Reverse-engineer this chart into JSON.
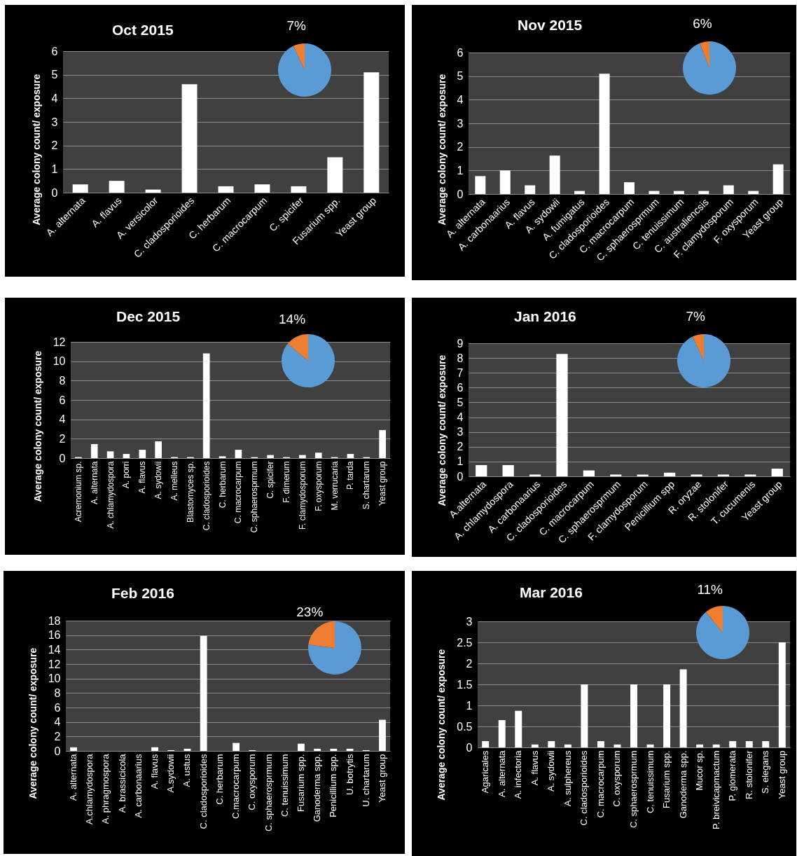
{
  "chart_data": [
    {
      "type": "bar",
      "title": "Oct 2015",
      "ylabel": "Average colony count/ exposure",
      "categories": [
        "A. alternata",
        "A. flavus",
        "A. versicolor",
        "C. cladosporioides",
        "C. herbarum",
        "C. macrocarpum",
        "C. spicifer",
        "Fusarium spp.",
        "Yeast group"
      ],
      "values": [
        0.35,
        0.5,
        0.13,
        4.6,
        0.27,
        0.35,
        0.27,
        1.5,
        5.1
      ],
      "color": "#ffffff",
      "ylim": [
        0,
        6
      ],
      "yticks": [
        0,
        1,
        2,
        3,
        4,
        5,
        6
      ],
      "grid": "y"
    },
    {
      "type": "pie",
      "categories": [
        null,
        null
      ],
      "values": [
        93,
        7
      ],
      "colors": [
        "#5b9bd5",
        "#ed7d31"
      ],
      "value_labels": [
        null,
        "7%"
      ]
    },
    {
      "type": "bar",
      "title": "Nov 2015",
      "ylabel": "Average colony count/ exposure",
      "categories": [
        "A. alternata",
        "A. carbonaarius",
        "A. flavus",
        "A. sydowii",
        "A. fumigatus",
        "C. cladosporioides",
        "C. macrocarpum",
        "C. sphaerosprmum",
        "C. tenuissimum",
        "C. australiencsis",
        "F. clamydosporum",
        "F. oxysporum",
        "Yeast group"
      ],
      "values": [
        0.76,
        1.0,
        0.37,
        1.63,
        0.13,
        5.1,
        0.5,
        0.13,
        0.13,
        0.13,
        0.37,
        0.13,
        1.26
      ],
      "color": "#ffffff",
      "ylim": [
        0,
        6
      ],
      "yticks": [
        0,
        1,
        2,
        3,
        4,
        5,
        6
      ],
      "grid": "y"
    },
    {
      "type": "pie",
      "categories": [
        null,
        null
      ],
      "values": [
        94,
        6
      ],
      "colors": [
        "#5b9bd5",
        "#ed7d31"
      ],
      "value_labels": [
        null,
        "6%"
      ]
    },
    {
      "type": "bar",
      "title": "Dec 2015",
      "ylabel": "Average colony count/ exposure",
      "categories": [
        "Acremonium sp.",
        "A. alternata",
        "A. chlamydospora",
        "A. porri",
        "A. flavus",
        "A. sydowii",
        "A. melleus",
        "Blastomyces sp.",
        "C. cladosporioides",
        "C. herbarum",
        "C. macrocarpum",
        "C. sphaerosprmum",
        "C. spicifer",
        "F. dimerum",
        "F. clamydosporum",
        "F. oxysporum",
        "M. verrucaria",
        "P. tarda",
        "S. chartarum",
        "Yeast group"
      ],
      "values": [
        0.1,
        1.45,
        0.7,
        0.43,
        0.86,
        1.74,
        0.1,
        0.1,
        10.8,
        0.19,
        0.86,
        0.1,
        0.32,
        0.1,
        0.32,
        0.56,
        0.1,
        0.43,
        0.1,
        2.9
      ],
      "color": "#ffffff",
      "ylim": [
        0,
        12
      ],
      "yticks": [
        0,
        2,
        4,
        6,
        8,
        10,
        12
      ],
      "grid": "y"
    },
    {
      "type": "pie",
      "categories": [
        null,
        null
      ],
      "values": [
        86,
        14
      ],
      "colors": [
        "#5b9bd5",
        "#ed7d31"
      ],
      "value_labels": [
        null,
        "14%"
      ]
    },
    {
      "type": "bar",
      "title": "Jan 2016",
      "ylabel": "Average colony count/ exposure",
      "categories": [
        "A.alternata",
        "A. chlamydospora",
        "A. carbonaarius",
        "C. cladosporioides",
        "C. macrocarpum",
        "C. sphaerosprmum",
        "F. clamydosporum",
        "Penicillium spp",
        "R. oryzae",
        "R. stolonifer",
        "T. cucumenis",
        "Yeast group"
      ],
      "values": [
        0.76,
        0.76,
        0.12,
        8.28,
        0.4,
        0.12,
        0.12,
        0.25,
        0.12,
        0.12,
        0.12,
        0.52
      ],
      "color": "#ffffff",
      "ylim": [
        0,
        9
      ],
      "yticks": [
        0,
        1,
        2,
        3,
        4,
        5,
        6,
        7,
        8,
        9
      ],
      "grid": "y"
    },
    {
      "type": "pie",
      "categories": [
        null,
        null
      ],
      "values": [
        93,
        7
      ],
      "colors": [
        "#5b9bd5",
        "#ed7d31"
      ],
      "value_labels": [
        null,
        "7%"
      ]
    },
    {
      "type": "bar",
      "title": "Feb 2016",
      "ylabel": "Average colony count/ exposure",
      "categories": [
        "A. alternata",
        "A.chlamydospora",
        "A. phragmospora",
        "A. brassicicola",
        "A. carbonaarius",
        "A. flavus",
        "A.sydowii",
        "A. ustus",
        "C. cladosporioides",
        "C. herbarum",
        "C.macrocarpum",
        "C. oxysporum",
        "C. sphaerosprmum",
        "C. tenuissimum",
        "Fusarium spp.",
        "Ganoderma spp.",
        "Penicillium spp.",
        "U. botrytis",
        "U. chartarum",
        "Yeast group"
      ],
      "values": [
        0.5,
        0,
        0,
        0,
        0,
        0.5,
        0.1,
        0.3,
        15.9,
        0,
        1.1,
        0.1,
        0,
        0,
        1.0,
        0.3,
        0.3,
        0.3,
        0.1,
        4.3
      ],
      "color": "#ffffff",
      "ylim": [
        0,
        18
      ],
      "yticks": [
        0,
        2,
        4,
        6,
        8,
        10,
        12,
        14,
        16,
        18
      ],
      "grid": "y"
    },
    {
      "type": "pie",
      "categories": [
        null,
        null
      ],
      "values": [
        77,
        23
      ],
      "colors": [
        "#5b9bd5",
        "#ed7d31"
      ],
      "value_labels": [
        null,
        "23%"
      ]
    },
    {
      "type": "bar",
      "title": "Mar 2016",
      "ylabel": "Average colony count/ exposure",
      "categories": [
        "Agaricales",
        "A. alternata",
        "A. infectoria",
        "A. flavus",
        "A. sydowii",
        "A. sulphereus",
        "C. cladosporioides",
        "C. macrocarpum",
        "C. oxysporum",
        "C. sphaerosprmum",
        "C. tenuissimum",
        "Fusarium spp.",
        "Ganoderma spp.",
        "Mucor sp.",
        "P. breivicapmactum",
        "P. glomerata",
        "R. stolonifer",
        "S. elegans",
        "Yeast group"
      ],
      "values": [
        0.15,
        0.65,
        0.87,
        0.07,
        0.15,
        0.07,
        1.5,
        0.15,
        0.07,
        1.5,
        0.07,
        1.5,
        1.86,
        0.07,
        0.07,
        0.15,
        0.15,
        0.15,
        2.5
      ],
      "color": "#ffffff",
      "ylim": [
        0,
        3
      ],
      "yticks": [
        0,
        0.5,
        1,
        1.5,
        2,
        2.5,
        3
      ],
      "grid": "y"
    },
    {
      "type": "pie",
      "categories": [
        null,
        null
      ],
      "values": [
        89,
        11
      ],
      "colors": [
        "#5b9bd5",
        "#ed7d31"
      ],
      "value_labels": [
        null,
        "11%"
      ]
    }
  ]
}
